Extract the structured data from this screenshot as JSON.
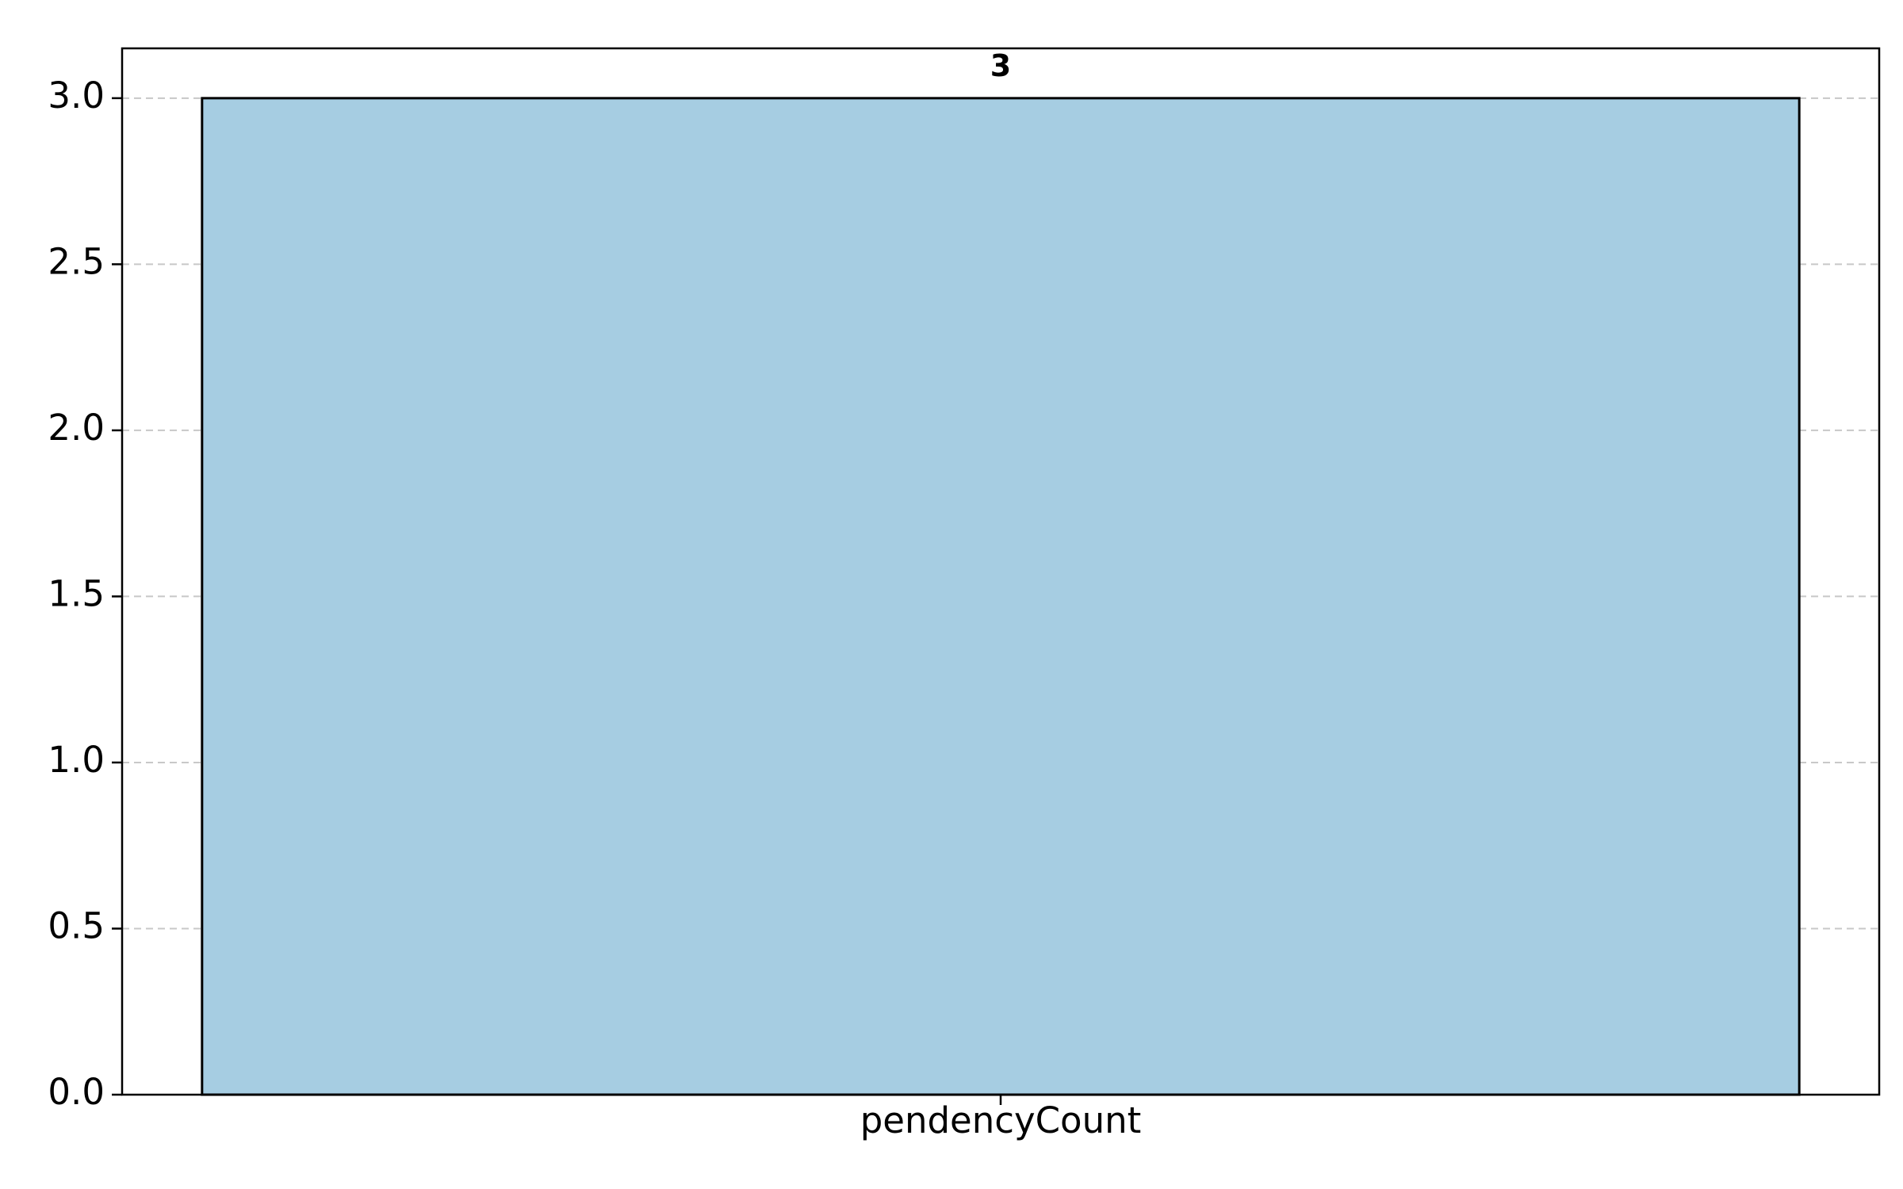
{
  "chart_data": {
    "type": "bar",
    "categories": [
      "pendencyCount"
    ],
    "values": [
      3
    ],
    "data_labels": [
      "3"
    ],
    "title": "",
    "xlabel": "",
    "ylabel": "",
    "ylim": [
      0,
      3.15
    ],
    "yticks": [
      "0.0",
      "0.5",
      "1.0",
      "1.5",
      "2.0",
      "2.5",
      "3.0"
    ],
    "ytick_values": [
      0,
      0.5,
      1.0,
      1.5,
      2.0,
      2.5,
      3.0
    ],
    "grid": "y-dashed",
    "colors": {
      "bar": "#a6cde2",
      "edge": "#000000",
      "grid": "#c8c8c8"
    }
  }
}
